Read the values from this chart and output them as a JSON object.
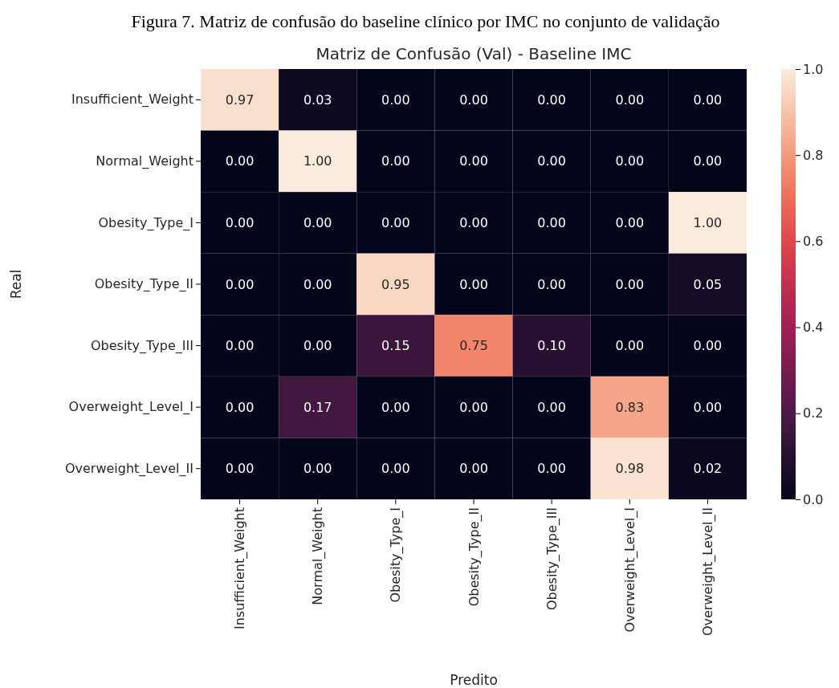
{
  "chart_data": {
    "type": "heatmap",
    "title": "Figura 7. Matriz de confusão do baseline clínico por IMC no conjunto de validação",
    "subtitle": "Matriz de Confusão (Val) - Baseline IMC",
    "xlabel": "Predito",
    "ylabel": "Real",
    "categories": [
      "Insufficient_Weight",
      "Normal_Weight",
      "Obesity_Type_I",
      "Obesity_Type_II",
      "Obesity_Type_III",
      "Overweight_Level_I",
      "Overweight_Level_II"
    ],
    "y_categories": [
      "Insufficient_Weight",
      "Normal_Weight",
      "Obesity_Type_I",
      "Obesity_Type_II",
      "Obesity_Type_III",
      "Overweight_Level_I",
      "Overweight_Level_II"
    ],
    "cells": [
      [
        0.97,
        0.03,
        0,
        0,
        0,
        0,
        0
      ],
      [
        0,
        1,
        0,
        0,
        0,
        0,
        0
      ],
      [
        0,
        0,
        0,
        0,
        0,
        0,
        1
      ],
      [
        0,
        0,
        0.95,
        0,
        0,
        0,
        0.05
      ],
      [
        0,
        0,
        0.15,
        0.75,
        0.1,
        0,
        0
      ],
      [
        0,
        0.17,
        0,
        0,
        0,
        0.83,
        0
      ],
      [
        0,
        0,
        0,
        0,
        0,
        0.98,
        0.02
      ]
    ],
    "cell_labels": [
      [
        "0.97",
        "0.03",
        "0.00",
        "0.00",
        "0.00",
        "0.00",
        "0.00"
      ],
      [
        "0.00",
        "1.00",
        "0.00",
        "0.00",
        "0.00",
        "0.00",
        "0.00"
      ],
      [
        "0.00",
        "0.00",
        "0.00",
        "0.00",
        "0.00",
        "0.00",
        "1.00"
      ],
      [
        "0.00",
        "0.00",
        "0.95",
        "0.00",
        "0.00",
        "0.00",
        "0.05"
      ],
      [
        "0.00",
        "0.00",
        "0.15",
        "0.75",
        "0.10",
        "0.00",
        "0.00"
      ],
      [
        "0.00",
        "0.17",
        "0.00",
        "0.00",
        "0.00",
        "0.83",
        "0.00"
      ],
      [
        "0.00",
        "0.00",
        "0.00",
        "0.00",
        "0.00",
        "0.98",
        "0.02"
      ]
    ],
    "clim": [
      0,
      1
    ],
    "cticks": [
      {
        "value": 0,
        "label": "0.0"
      },
      {
        "value": 0.2,
        "label": "0.2"
      },
      {
        "value": 0.4,
        "label": "0.4"
      },
      {
        "value": 0.6,
        "label": "0.6"
      },
      {
        "value": 0.8,
        "label": "0.8"
      },
      {
        "value": 1,
        "label": "1.0"
      }
    ]
  }
}
